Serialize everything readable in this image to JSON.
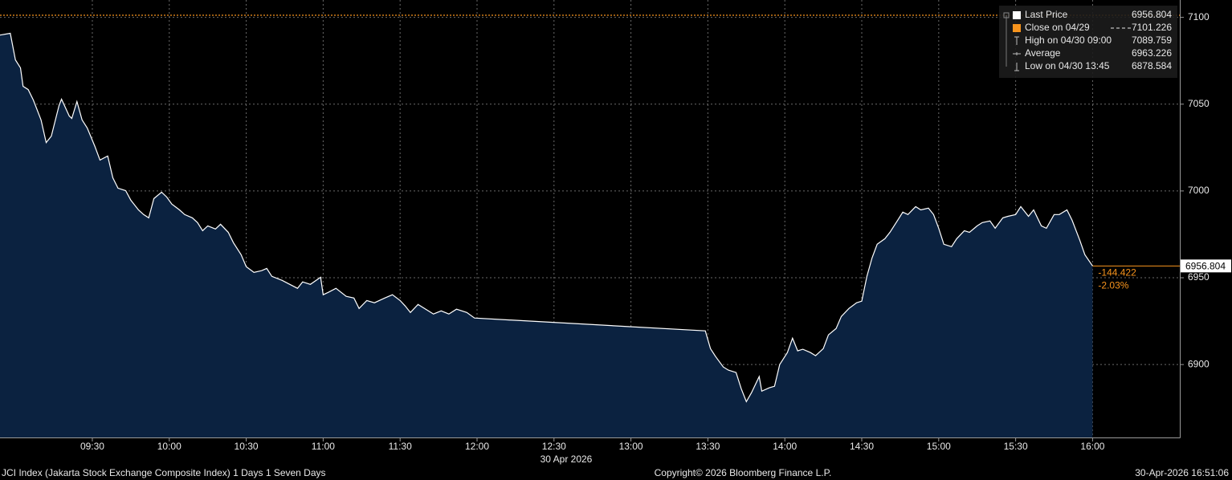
{
  "chart_data": {
    "type": "line",
    "x": [
      "08:54",
      "08:58",
      "09:00",
      "09:02",
      "09:03",
      "09:05",
      "09:07",
      "09:10",
      "09:12",
      "09:14",
      "09:17",
      "09:18",
      "09:21",
      "09:22",
      "09:24",
      "09:26",
      "09:28",
      "09:31",
      "09:33",
      "09:36",
      "09:38",
      "09:40",
      "09:43",
      "09:45",
      "09:48",
      "09:50",
      "09:52",
      "09:54",
      "09:57",
      "09:59",
      "10:01",
      "10:04",
      "10:06",
      "10:09",
      "10:11",
      "10:13",
      "10:15",
      "10:18",
      "10:20",
      "10:23",
      "10:25",
      "10:28",
      "10:30",
      "10:33",
      "10:36",
      "10:38",
      "10:40",
      "10:44",
      "10:47",
      "10:50",
      "10:52",
      "10:55",
      "10:59",
      "11:00",
      "11:02",
      "11:05",
      "11:09",
      "11:12",
      "11:14",
      "11:17",
      "11:20",
      "11:24",
      "11:27",
      "11:30",
      "11:32",
      "11:34",
      "11:37",
      "11:40",
      "11:43",
      "11:46",
      "11:49",
      "11:52",
      "11:56",
      "11:59",
      "13:29",
      "13:31",
      "13:33",
      "13:36",
      "13:38",
      "13:41",
      "13:43",
      "13:45",
      "13:47",
      "13:50",
      "13:51",
      "13:54",
      "13:56",
      "13:58",
      "14:01",
      "14:03",
      "14:05",
      "14:07",
      "14:10",
      "14:12",
      "14:15",
      "14:17",
      "14:20",
      "14:22",
      "14:25",
      "14:28",
      "14:30",
      "14:32",
      "14:34",
      "14:36",
      "14:39",
      "14:41",
      "14:44",
      "14:46",
      "14:48",
      "14:51",
      "14:53",
      "14:56",
      "14:58",
      "15:00",
      "15:02",
      "15:05",
      "15:07",
      "15:10",
      "15:12",
      "15:15",
      "15:17",
      "15:20",
      "15:22",
      "15:25",
      "15:27",
      "15:30",
      "15:32",
      "15:35",
      "15:37",
      "15:40",
      "15:42",
      "15:45",
      "15:47",
      "15:50",
      "15:52",
      "15:55",
      "15:57",
      "16:00"
    ],
    "series": [
      {
        "name": "Last Price",
        "color": "#ffffff",
        "fill": "#0b2240",
        "values": [
          7089.8,
          7090.8,
          7075.5,
          7070.9,
          7060.3,
          7058.4,
          7052.4,
          7040.9,
          7027.9,
          7031.6,
          7049.2,
          7052.9,
          7043.2,
          7041.8,
          7051.5,
          7040.9,
          7036.3,
          7025.6,
          7017.8,
          7020.1,
          7007.6,
          7001.6,
          7000.2,
          6994.7,
          6989.1,
          6986.4,
          6984.5,
          6995.6,
          6999.3,
          6996.5,
          6992.4,
          6989.1,
          6986.4,
          6984.5,
          6981.8,
          6977.1,
          6979.9,
          6978.1,
          6980.8,
          6976.2,
          6970.2,
          6963.3,
          6956.4,
          6953.1,
          6954.1,
          6955.4,
          6950.8,
          6948.5,
          6946.2,
          6943.9,
          6947.6,
          6946.2,
          6950.3,
          6940.2,
          6941.6,
          6943.9,
          6939.3,
          6938.3,
          6932.3,
          6936.9,
          6935.6,
          6938.3,
          6940.2,
          6936.9,
          6933.7,
          6930.0,
          6934.6,
          6931.9,
          6929.1,
          6930.9,
          6929.1,
          6931.9,
          6930.0,
          6926.8,
          6919.4,
          6909.2,
          6904.6,
          6898.6,
          6896.8,
          6895.4,
          6886.1,
          6878.6,
          6883.8,
          6893.1,
          6884.7,
          6886.6,
          6887.5,
          6900.0,
          6906.9,
          6915.2,
          6907.9,
          6908.8,
          6906.9,
          6905.1,
          6909.2,
          6917.1,
          6920.8,
          6927.7,
          6932.3,
          6935.6,
          6936.5,
          6950.8,
          6961.4,
          6969.3,
          6972.5,
          6976.2,
          6983.1,
          6987.8,
          6986.4,
          6991.0,
          6989.1,
          6990.1,
          6986.4,
          6978.5,
          6969.3,
          6967.9,
          6972.5,
          6977.1,
          6976.2,
          6979.9,
          6981.8,
          6982.7,
          6978.5,
          6984.5,
          6985.4,
          6986.4,
          6991.0,
          6985.4,
          6989.1,
          6979.9,
          6978.5,
          6986.4,
          6986.4,
          6989.1,
          6983.1,
          6971.6,
          6963.3,
          6956.804
        ]
      }
    ],
    "last_value": 6956.804,
    "reference_line": {
      "name": "Close on 04/29",
      "value": 7101.226,
      "color": "#f7941d"
    },
    "stats": [
      {
        "name": "High on 04/30 09:00",
        "value": 7089.759
      },
      {
        "name": "Average",
        "value": 6963.226
      },
      {
        "name": "Low on 04/30 13:45",
        "value": 6878.584
      }
    ],
    "change": -144.422,
    "change_pct": {
      "value": -2.03,
      "label": "-2.03%"
    },
    "change_color": "#f7941d",
    "xlim": [
      "08:54",
      "16:34"
    ],
    "xticks": [
      "09:30",
      "10:00",
      "10:30",
      "11:00",
      "11:30",
      "12:00",
      "12:30",
      "13:00",
      "13:30",
      "14:00",
      "14:30",
      "15:00",
      "15:30",
      "16:00"
    ],
    "x_sublabel": "30 Apr 2026",
    "ylim": [
      6858,
      7110
    ],
    "yticks": [
      6900,
      6950,
      7000,
      7050,
      7100
    ],
    "grid": true,
    "footer": {
      "left": "JCI Index (Jakarta Stock Exchange Composite Index) 1 Days 1 Seven Days",
      "center": "Copyright© 2026 Bloomberg Finance L.P.",
      "right": "30-Apr-2026 16:51:06"
    }
  }
}
